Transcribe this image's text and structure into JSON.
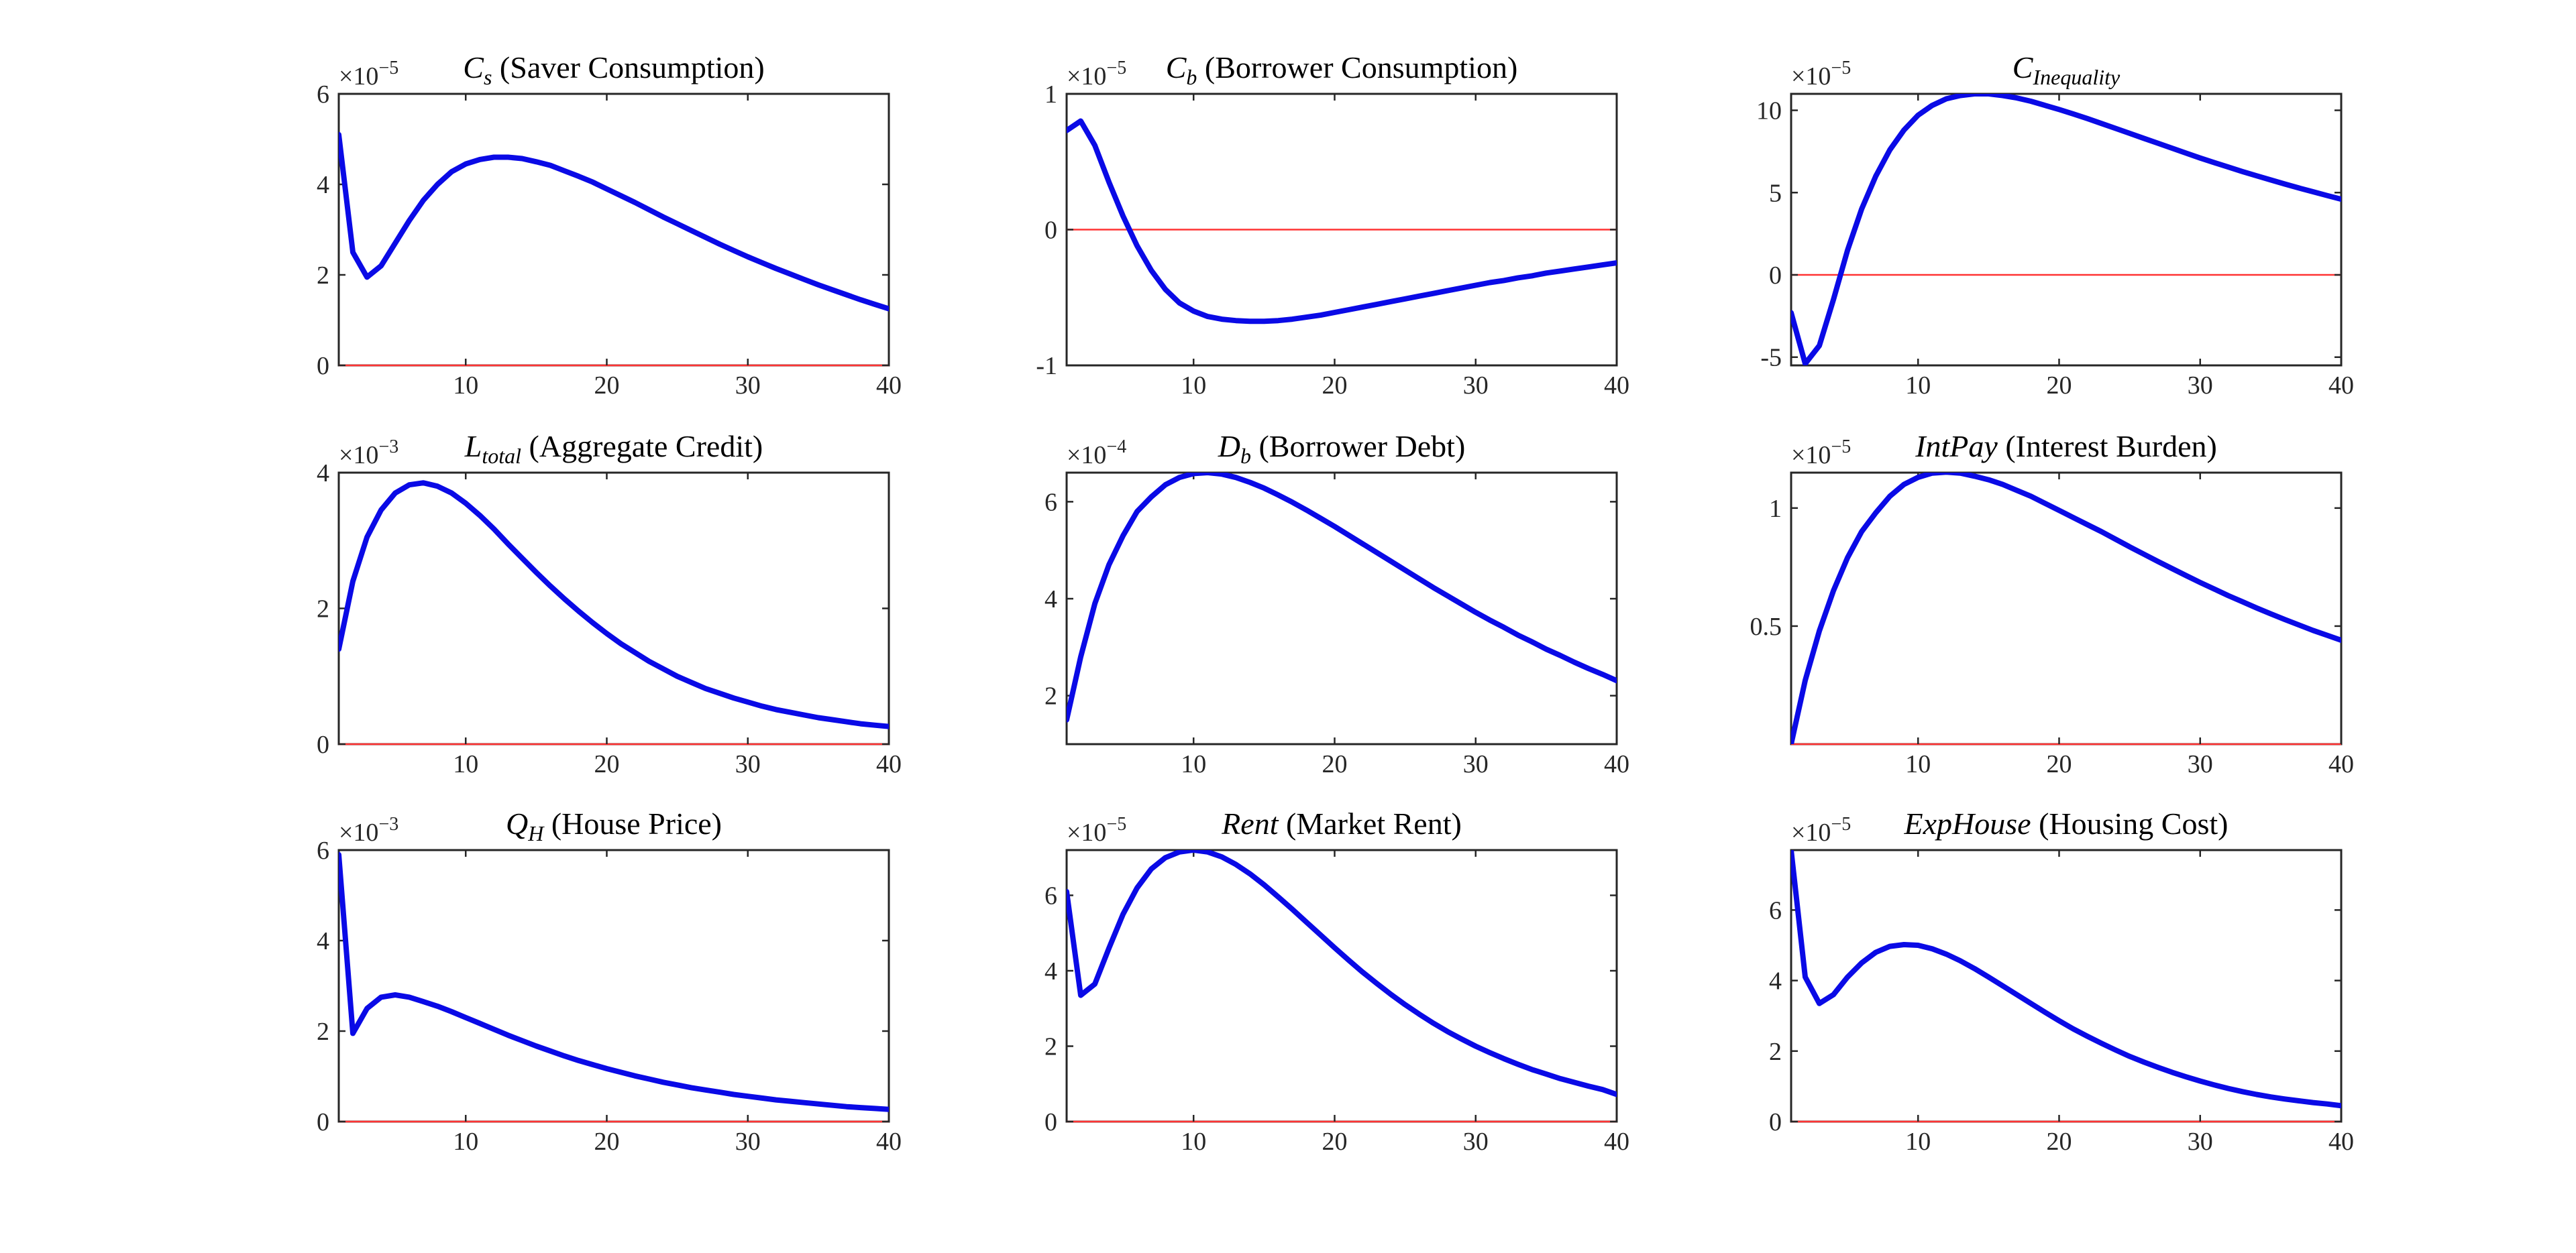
{
  "figure": {
    "colors": {
      "series": "#0a0ae6",
      "zero_line": "#ff3333",
      "axes": "#262626",
      "background": "#ffffff"
    }
  },
  "chart_data": [
    {
      "type": "line",
      "title_var": "C",
      "title_sub": "s",
      "title_text": " (Saver Consumption)",
      "exponent_base": "×10",
      "exponent_power": "−5",
      "xlim": [
        1,
        40
      ],
      "ylim": [
        0,
        6
      ],
      "xticks": [
        10,
        20,
        30,
        40
      ],
      "xtick_labels": [
        "10",
        "20",
        "30",
        "40"
      ],
      "yticks": [
        0,
        2,
        4,
        6
      ],
      "ytick_labels": [
        "0",
        "2",
        "4",
        "6"
      ],
      "zero_line": 0,
      "grid": false,
      "x": [
        1,
        2,
        3,
        4,
        5,
        6,
        7,
        8,
        9,
        10,
        11,
        12,
        13,
        14,
        15,
        16,
        17,
        18,
        19,
        20,
        21,
        22,
        23,
        24,
        25,
        26,
        27,
        28,
        29,
        30,
        31,
        32,
        33,
        34,
        35,
        36,
        37,
        38,
        39,
        40
      ],
      "series": [
        {
          "values": [
            5.1,
            2.5,
            1.95,
            2.2,
            2.7,
            3.2,
            3.65,
            4.0,
            4.28,
            4.45,
            4.55,
            4.6,
            4.6,
            4.57,
            4.5,
            4.42,
            4.3,
            4.18,
            4.05,
            3.9,
            3.75,
            3.6,
            3.44,
            3.28,
            3.13,
            2.98,
            2.83,
            2.68,
            2.54,
            2.4,
            2.27,
            2.14,
            2.02,
            1.9,
            1.78,
            1.67,
            1.56,
            1.45,
            1.35,
            1.25
          ]
        }
      ]
    },
    {
      "type": "line",
      "title_var": "C",
      "title_sub": "b",
      "title_text": " (Borrower Consumption)",
      "exponent_base": "×10",
      "exponent_power": "−5",
      "xlim": [
        1,
        40
      ],
      "ylim": [
        -1,
        1
      ],
      "xticks": [
        10,
        20,
        30,
        40
      ],
      "xtick_labels": [
        "10",
        "20",
        "30",
        "40"
      ],
      "yticks": [
        -1,
        0,
        1
      ],
      "ytick_labels": [
        "-1",
        "0",
        "1"
      ],
      "zero_line": 0,
      "grid": false,
      "x": [
        1,
        2,
        3,
        4,
        5,
        6,
        7,
        8,
        9,
        10,
        11,
        12,
        13,
        14,
        15,
        16,
        17,
        18,
        19,
        20,
        21,
        22,
        23,
        24,
        25,
        26,
        27,
        28,
        29,
        30,
        31,
        32,
        33,
        34,
        35,
        36,
        37,
        38,
        39,
        40
      ],
      "series": [
        {
          "values": [
            0.73,
            0.8,
            0.62,
            0.35,
            0.1,
            -0.12,
            -0.3,
            -0.44,
            -0.54,
            -0.6,
            -0.64,
            -0.66,
            -0.67,
            -0.675,
            -0.675,
            -0.67,
            -0.66,
            -0.645,
            -0.63,
            -0.61,
            -0.59,
            -0.57,
            -0.55,
            -0.53,
            -0.51,
            -0.49,
            -0.47,
            -0.45,
            -0.43,
            -0.41,
            -0.39,
            -0.375,
            -0.355,
            -0.34,
            -0.32,
            -0.305,
            -0.29,
            -0.275,
            -0.26,
            -0.245
          ]
        }
      ]
    },
    {
      "type": "line",
      "title_var": "C",
      "title_sub": "Inequality",
      "title_text": "",
      "exponent_base": "×10",
      "exponent_power": "−5",
      "xlim": [
        1,
        40
      ],
      "ylim": [
        -5.5,
        11
      ],
      "xticks": [
        10,
        20,
        30,
        40
      ],
      "xtick_labels": [
        "10",
        "20",
        "30",
        "40"
      ],
      "yticks": [
        -5,
        0,
        5,
        10
      ],
      "ytick_labels": [
        "-5",
        "0",
        "5",
        "10"
      ],
      "zero_line": 0,
      "grid": false,
      "x": [
        1,
        2,
        3,
        4,
        5,
        6,
        7,
        8,
        9,
        10,
        11,
        12,
        13,
        14,
        15,
        16,
        17,
        18,
        19,
        20,
        21,
        22,
        23,
        24,
        25,
        26,
        27,
        28,
        29,
        30,
        31,
        32,
        33,
        34,
        35,
        36,
        37,
        38,
        39,
        40
      ],
      "series": [
        {
          "values": [
            -2.3,
            -5.4,
            -4.3,
            -1.5,
            1.5,
            4.0,
            6.0,
            7.6,
            8.8,
            9.7,
            10.3,
            10.7,
            10.9,
            11.0,
            11.0,
            10.9,
            10.75,
            10.55,
            10.3,
            10.05,
            9.78,
            9.5,
            9.2,
            8.9,
            8.6,
            8.3,
            8.0,
            7.7,
            7.4,
            7.1,
            6.82,
            6.55,
            6.28,
            6.02,
            5.77,
            5.52,
            5.28,
            5.05,
            4.82,
            4.6
          ]
        }
      ]
    },
    {
      "type": "line",
      "title_var": "L",
      "title_sub": "total",
      "title_text": " (Aggregate Credit)",
      "exponent_base": "×10",
      "exponent_power": "−3",
      "xlim": [
        1,
        40
      ],
      "ylim": [
        0,
        4
      ],
      "xticks": [
        10,
        20,
        30,
        40
      ],
      "xtick_labels": [
        "10",
        "20",
        "30",
        "40"
      ],
      "yticks": [
        0,
        2,
        4
      ],
      "ytick_labels": [
        "0",
        "2",
        "4"
      ],
      "zero_line": 0,
      "grid": false,
      "x": [
        1,
        2,
        3,
        4,
        5,
        6,
        7,
        8,
        9,
        10,
        11,
        12,
        13,
        14,
        15,
        16,
        17,
        18,
        19,
        20,
        21,
        22,
        23,
        24,
        25,
        26,
        27,
        28,
        29,
        30,
        31,
        32,
        33,
        34,
        35,
        36,
        37,
        38,
        39,
        40
      ],
      "series": [
        {
          "values": [
            1.4,
            2.4,
            3.05,
            3.45,
            3.7,
            3.82,
            3.85,
            3.8,
            3.7,
            3.55,
            3.37,
            3.17,
            2.95,
            2.74,
            2.53,
            2.33,
            2.14,
            1.96,
            1.79,
            1.63,
            1.48,
            1.35,
            1.22,
            1.11,
            1.0,
            0.91,
            0.82,
            0.75,
            0.68,
            0.62,
            0.56,
            0.51,
            0.47,
            0.43,
            0.39,
            0.36,
            0.33,
            0.3,
            0.28,
            0.26
          ]
        }
      ]
    },
    {
      "type": "line",
      "title_var": "D",
      "title_sub": "b",
      "title_text": " (Borrower Debt)",
      "exponent_base": "×10",
      "exponent_power": "−4",
      "xlim": [
        1,
        40
      ],
      "ylim": [
        1,
        6.6
      ],
      "xticks": [
        10,
        20,
        30,
        40
      ],
      "xtick_labels": [
        "10",
        "20",
        "30",
        "40"
      ],
      "yticks": [
        2,
        4,
        6
      ],
      "ytick_labels": [
        "2",
        "4",
        "6"
      ],
      "zero_line": 0,
      "grid": false,
      "x": [
        1,
        2,
        3,
        4,
        5,
        6,
        7,
        8,
        9,
        10,
        11,
        12,
        13,
        14,
        15,
        16,
        17,
        18,
        19,
        20,
        21,
        22,
        23,
        24,
        25,
        26,
        27,
        28,
        29,
        30,
        31,
        32,
        33,
        34,
        35,
        36,
        37,
        38,
        39,
        40
      ],
      "series": [
        {
          "values": [
            1.5,
            2.8,
            3.9,
            4.7,
            5.3,
            5.8,
            6.1,
            6.35,
            6.5,
            6.58,
            6.6,
            6.57,
            6.5,
            6.4,
            6.28,
            6.14,
            5.99,
            5.83,
            5.66,
            5.49,
            5.31,
            5.13,
            4.95,
            4.77,
            4.59,
            4.41,
            4.23,
            4.06,
            3.89,
            3.72,
            3.56,
            3.41,
            3.25,
            3.11,
            2.96,
            2.83,
            2.69,
            2.56,
            2.44,
            2.31
          ]
        }
      ]
    },
    {
      "type": "line",
      "title_var": "IntPay",
      "title_sub": "",
      "title_text": " (Interest Burden)",
      "exponent_base": "×10",
      "exponent_power": "−5",
      "xlim": [
        1,
        40
      ],
      "ylim": [
        0,
        1.15
      ],
      "xticks": [
        10,
        20,
        30,
        40
      ],
      "xtick_labels": [
        "10",
        "20",
        "30",
        "40"
      ],
      "yticks": [
        0.5,
        1
      ],
      "ytick_labels": [
        "0.5",
        "1"
      ],
      "zero_line": 0,
      "grid": false,
      "x": [
        1,
        2,
        3,
        4,
        5,
        6,
        7,
        8,
        9,
        10,
        11,
        12,
        13,
        14,
        15,
        16,
        17,
        18,
        19,
        20,
        21,
        22,
        23,
        24,
        25,
        26,
        27,
        28,
        29,
        30,
        31,
        32,
        33,
        34,
        35,
        36,
        37,
        38,
        39,
        40
      ],
      "series": [
        {
          "values": [
            0.0,
            0.27,
            0.48,
            0.65,
            0.79,
            0.9,
            0.98,
            1.05,
            1.1,
            1.13,
            1.148,
            1.152,
            1.148,
            1.135,
            1.12,
            1.1,
            1.075,
            1.05,
            1.02,
            0.99,
            0.96,
            0.93,
            0.9,
            0.868,
            0.836,
            0.805,
            0.774,
            0.744,
            0.714,
            0.685,
            0.657,
            0.629,
            0.603,
            0.577,
            0.552,
            0.528,
            0.505,
            0.482,
            0.461,
            0.44
          ]
        }
      ]
    },
    {
      "type": "line",
      "title_var": "Q",
      "title_sub": "H",
      "title_text": " (House Price)",
      "exponent_base": "×10",
      "exponent_power": "−3",
      "xlim": [
        1,
        40
      ],
      "ylim": [
        0,
        6
      ],
      "xticks": [
        10,
        20,
        30,
        40
      ],
      "xtick_labels": [
        "10",
        "20",
        "30",
        "40"
      ],
      "yticks": [
        0,
        2,
        4,
        6
      ],
      "ytick_labels": [
        "0",
        "2",
        "4",
        "6"
      ],
      "zero_line": 0,
      "grid": false,
      "x": [
        1,
        2,
        3,
        4,
        5,
        6,
        7,
        8,
        9,
        10,
        11,
        12,
        13,
        14,
        15,
        16,
        17,
        18,
        19,
        20,
        21,
        22,
        23,
        24,
        25,
        26,
        27,
        28,
        29,
        30,
        31,
        32,
        33,
        34,
        35,
        36,
        37,
        38,
        39,
        40
      ],
      "series": [
        {
          "values": [
            5.9,
            1.95,
            2.5,
            2.75,
            2.8,
            2.75,
            2.65,
            2.55,
            2.43,
            2.3,
            2.17,
            2.04,
            1.91,
            1.79,
            1.67,
            1.56,
            1.45,
            1.35,
            1.26,
            1.17,
            1.09,
            1.01,
            0.94,
            0.87,
            0.81,
            0.75,
            0.7,
            0.65,
            0.6,
            0.56,
            0.52,
            0.48,
            0.45,
            0.42,
            0.39,
            0.36,
            0.33,
            0.31,
            0.29,
            0.27
          ]
        }
      ]
    },
    {
      "type": "line",
      "title_var": "Rent",
      "title_sub": "",
      "title_text": " (Market Rent)",
      "exponent_base": "×10",
      "exponent_power": "−5",
      "xlim": [
        1,
        40
      ],
      "ylim": [
        0,
        7.2
      ],
      "xticks": [
        10,
        20,
        30,
        40
      ],
      "xtick_labels": [
        "10",
        "20",
        "30",
        "40"
      ],
      "yticks": [
        0,
        2,
        4,
        6
      ],
      "ytick_labels": [
        "0",
        "2",
        "4",
        "6"
      ],
      "zero_line": 0,
      "grid": false,
      "x": [
        1,
        2,
        3,
        4,
        5,
        6,
        7,
        8,
        9,
        10,
        11,
        12,
        13,
        14,
        15,
        16,
        17,
        18,
        19,
        20,
        21,
        22,
        23,
        24,
        25,
        26,
        27,
        28,
        29,
        30,
        31,
        32,
        33,
        34,
        35,
        36,
        37,
        38,
        39,
        40
      ],
      "series": [
        {
          "values": [
            6.1,
            3.35,
            3.65,
            4.6,
            5.5,
            6.2,
            6.7,
            7.0,
            7.15,
            7.2,
            7.15,
            7.02,
            6.82,
            6.57,
            6.28,
            5.96,
            5.63,
            5.29,
            4.95,
            4.61,
            4.28,
            3.96,
            3.66,
            3.37,
            3.1,
            2.85,
            2.61,
            2.39,
            2.19,
            2.0,
            1.83,
            1.67,
            1.52,
            1.38,
            1.26,
            1.14,
            1.04,
            0.94,
            0.85,
            0.72
          ]
        }
      ]
    },
    {
      "type": "line",
      "title_var": "ExpHouse",
      "title_sub": "",
      "title_text": " (Housing Cost)",
      "exponent_base": "×10",
      "exponent_power": "−5",
      "xlim": [
        1,
        40
      ],
      "ylim": [
        0,
        7.7
      ],
      "xticks": [
        10,
        20,
        30,
        40
      ],
      "xtick_labels": [
        "10",
        "20",
        "30",
        "40"
      ],
      "yticks": [
        0,
        2,
        4,
        6
      ],
      "ytick_labels": [
        "0",
        "2",
        "4",
        "6"
      ],
      "zero_line": 0,
      "grid": false,
      "x": [
        1,
        2,
        3,
        4,
        5,
        6,
        7,
        8,
        9,
        10,
        11,
        12,
        13,
        14,
        15,
        16,
        17,
        18,
        19,
        20,
        21,
        22,
        23,
        24,
        25,
        26,
        27,
        28,
        29,
        30,
        31,
        32,
        33,
        34,
        35,
        36,
        37,
        38,
        39,
        40
      ],
      "series": [
        {
          "values": [
            7.7,
            4.1,
            3.35,
            3.6,
            4.1,
            4.5,
            4.8,
            4.97,
            5.02,
            5.0,
            4.9,
            4.75,
            4.56,
            4.34,
            4.1,
            3.85,
            3.6,
            3.35,
            3.1,
            2.86,
            2.63,
            2.42,
            2.22,
            2.03,
            1.85,
            1.69,
            1.54,
            1.4,
            1.27,
            1.15,
            1.04,
            0.94,
            0.85,
            0.77,
            0.7,
            0.64,
            0.59,
            0.54,
            0.5,
            0.45
          ]
        }
      ]
    }
  ]
}
